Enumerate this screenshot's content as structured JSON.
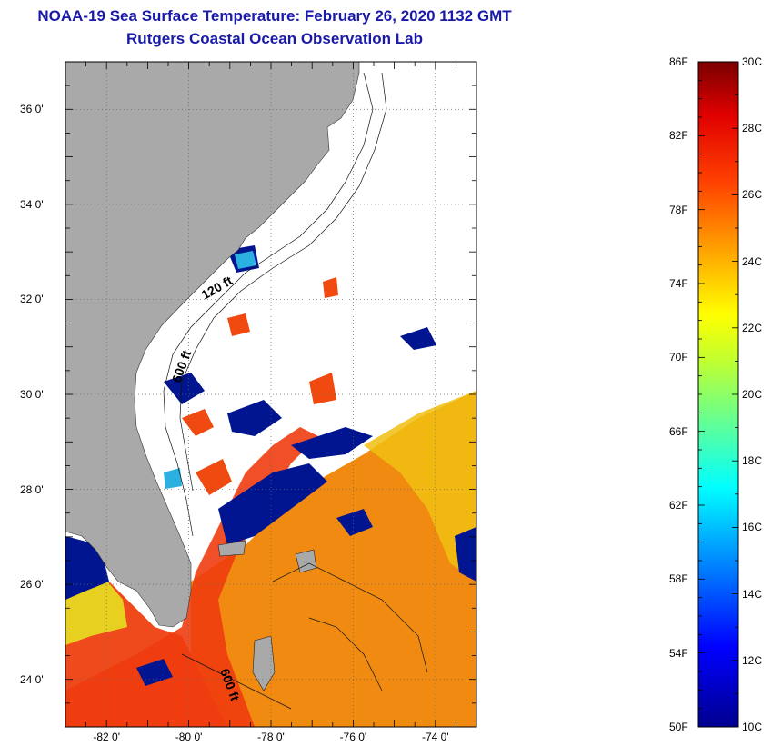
{
  "title": {
    "line1": "NOAA-19 Sea Surface Temperature:  February 26, 2020 1132 GMT",
    "line2": "Rutgers Coastal Ocean Observation Lab"
  },
  "map": {
    "longitude_labels": [
      "-82 0'",
      "-80 0'",
      "-78 0'",
      "-76 0'",
      "-74 0'"
    ],
    "longitude_values": [
      -82,
      -80,
      -78,
      -76,
      -74
    ],
    "latitude_labels": [
      "36 0'",
      "34 0'",
      "32 0'",
      "30 0'",
      "28 0'",
      "26 0'",
      "24 0'"
    ],
    "latitude_values": [
      36,
      34,
      32,
      30,
      28,
      26,
      24
    ],
    "lon_range": [
      -83,
      -73
    ],
    "lat_range": [
      23,
      37
    ],
    "depth_contour_labels": [
      "120 ft",
      "600 ft",
      "600 ft"
    ],
    "colors": {
      "land": "#a9a9a9",
      "cloud": "#ffffff",
      "cold": "#00158f",
      "warm_gulfstream": "#f04a10",
      "warm_sargasso": "#f08a10",
      "yellow_water": "#f0c810"
    }
  },
  "colorbar": {
    "fahrenheit_labels": [
      "86F",
      "82F",
      "78F",
      "74F",
      "70F",
      "66F",
      "62F",
      "58F",
      "54F",
      "50F"
    ],
    "fahrenheit_values": [
      86,
      82,
      78,
      74,
      70,
      66,
      62,
      58,
      54,
      50
    ],
    "celsius_labels": [
      "30C",
      "28C",
      "26C",
      "24C",
      "22C",
      "20C",
      "18C",
      "16C",
      "14C",
      "12C",
      "10C"
    ],
    "celsius_values": [
      30,
      28,
      26,
      24,
      22,
      20,
      18,
      16,
      14,
      12,
      10
    ],
    "range_celsius": [
      10,
      30
    ]
  }
}
